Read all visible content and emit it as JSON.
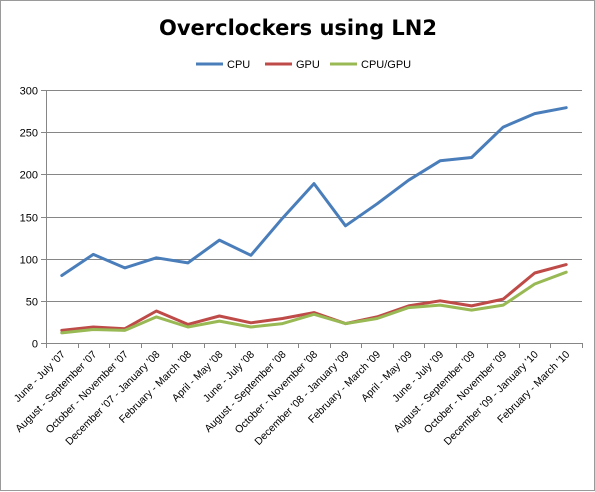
{
  "chart_data": {
    "type": "line",
    "title": "Overclockers using LN2",
    "xlabel": "",
    "ylabel": "",
    "ylim": [
      0,
      300
    ],
    "yticks": [
      0,
      50,
      100,
      150,
      200,
      250,
      300
    ],
    "grid": true,
    "legend_position": "top",
    "categories": [
      "June - July '07",
      "August - September '07",
      "October - November '07",
      "December '07 - January '08",
      "February - March '08",
      "April - May '08",
      "June - July '08",
      "August - September '08",
      "October - November '08",
      "December '08 - January '09",
      "February - March '09",
      "April - May '09",
      "June - July '09",
      "August - September '09",
      "October - November '09",
      "December '09 - January '10",
      "February - March '10"
    ],
    "series": [
      {
        "name": "CPU",
        "color": "#4a7ebb",
        "values": [
          80,
          105,
          89,
          101,
          95,
          122,
          104,
          148,
          189,
          139,
          165,
          193,
          216,
          220,
          256,
          272,
          279
        ]
      },
      {
        "name": "GPU",
        "color": "#be4b48",
        "values": [
          15,
          19,
          17,
          38,
          22,
          32,
          24,
          29,
          36,
          23,
          31,
          44,
          50,
          44,
          52,
          83,
          93
        ]
      },
      {
        "name": "CPU/GPU",
        "color": "#98b954",
        "values": [
          12,
          16,
          15,
          31,
          19,
          26,
          19,
          23,
          34,
          23,
          29,
          42,
          45,
          39,
          45,
          70,
          84
        ]
      }
    ]
  }
}
